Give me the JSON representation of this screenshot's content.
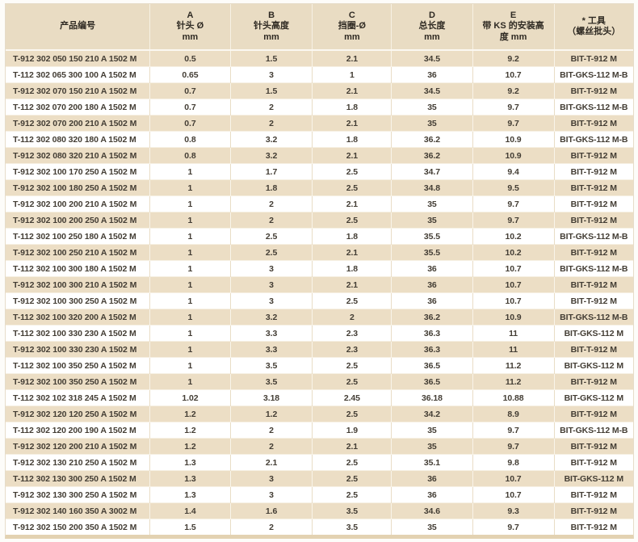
{
  "colors": {
    "header_bg": "#e9dcc3",
    "stripe_bg": "#ecdec5",
    "row_bg": "#ffffff",
    "bottom_bar": "#e3d2b2",
    "text": "#433d34"
  },
  "table": {
    "columns": [
      {
        "key": "product",
        "lines": [
          "产品编号"
        ]
      },
      {
        "key": "a",
        "lines": [
          "A",
          "针头 Ø",
          "mm"
        ]
      },
      {
        "key": "b",
        "lines": [
          "B",
          "针头高度",
          "mm"
        ]
      },
      {
        "key": "c",
        "lines": [
          "C",
          "挡圈-Ø",
          "mm"
        ]
      },
      {
        "key": "d",
        "lines": [
          "D",
          "总长度",
          "mm"
        ]
      },
      {
        "key": "e",
        "lines": [
          "E",
          "带 KS 的安装高",
          "度 mm"
        ]
      },
      {
        "key": "tool",
        "lines": [
          "* 工具",
          "（螺丝批头）"
        ]
      }
    ],
    "rows": [
      [
        "T-912 302 050 150 210 A 1502 M",
        "0.5",
        "1.5",
        "2.1",
        "34.5",
        "9.2",
        "BIT-T-912 M"
      ],
      [
        "T-112 302 065 300 100 A 1502 M",
        "0.65",
        "3",
        "1",
        "36",
        "10.7",
        "BIT-GKS-112 M-B"
      ],
      [
        "T-912 302 070 150 210 A 1502 M",
        "0.7",
        "1.5",
        "2.1",
        "34.5",
        "9.2",
        "BIT-T-912 M"
      ],
      [
        "T-112 302 070 200 180 A 1502 M",
        "0.7",
        "2",
        "1.8",
        "35",
        "9.7",
        "BIT-GKS-112 M-B"
      ],
      [
        "T-912 302 070 200 210 A 1502 M",
        "0.7",
        "2",
        "2.1",
        "35",
        "9.7",
        "BIT-T-912 M"
      ],
      [
        "T-112 302 080 320 180 A 1502 M",
        "0.8",
        "3.2",
        "1.8",
        "36.2",
        "10.9",
        "BIT-GKS-112 M-B"
      ],
      [
        "T-912 302 080 320 210 A 1502 M",
        "0.8",
        "3.2",
        "2.1",
        "36.2",
        "10.9",
        "BIT-T-912 M"
      ],
      [
        "T-912 302 100 170 250 A 1502 M",
        "1",
        "1.7",
        "2.5",
        "34.7",
        "9.4",
        "BIT-T-912 M"
      ],
      [
        "T-912 302 100 180 250 A 1502 M",
        "1",
        "1.8",
        "2.5",
        "34.8",
        "9.5",
        "BIT-T-912 M"
      ],
      [
        "T-912 302 100 200 210 A 1502 M",
        "1",
        "2",
        "2.1",
        "35",
        "9.7",
        "BIT-T-912 M"
      ],
      [
        "T-912 302 100 200 250 A 1502 M",
        "1",
        "2",
        "2.5",
        "35",
        "9.7",
        "BIT-T-912 M"
      ],
      [
        "T-112 302 100 250 180 A 1502 M",
        "1",
        "2.5",
        "1.8",
        "35.5",
        "10.2",
        "BIT-GKS-112 M-B"
      ],
      [
        "T-912 302 100 250 210 A 1502 M",
        "1",
        "2.5",
        "2.1",
        "35.5",
        "10.2",
        "BIT-T-912 M"
      ],
      [
        "T-112 302 100 300 180 A 1502 M",
        "1",
        "3",
        "1.8",
        "36",
        "10.7",
        "BIT-GKS-112 M-B"
      ],
      [
        "T-912 302 100 300 210 A 1502 M",
        "1",
        "3",
        "2.1",
        "36",
        "10.7",
        "BIT-T-912 M"
      ],
      [
        "T-912 302 100 300 250 A 1502 M",
        "1",
        "3",
        "2.5",
        "36",
        "10.7",
        "BIT-T-912 M"
      ],
      [
        "T-112 302 100 320 200 A 1502 M",
        "1",
        "3.2",
        "2",
        "36.2",
        "10.9",
        "BIT-GKS-112 M-B"
      ],
      [
        "T-112 302 100 330 230 A 1502 M",
        "1",
        "3.3",
        "2.3",
        "36.3",
        "11",
        "BIT-GKS-112 M"
      ],
      [
        "T-912 302 100 330 230 A 1502 M",
        "1",
        "3.3",
        "2.3",
        "36.3",
        "11",
        "BIT-T-912 M"
      ],
      [
        "T-112 302 100 350 250 A 1502 M",
        "1",
        "3.5",
        "2.5",
        "36.5",
        "11.2",
        "BIT-GKS-112 M"
      ],
      [
        "T-912 302 100 350 250 A 1502 M",
        "1",
        "3.5",
        "2.5",
        "36.5",
        "11.2",
        "BIT-T-912 M"
      ],
      [
        "T-112 302 102 318 245 A 1502 M",
        "1.02",
        "3.18",
        "2.45",
        "36.18",
        "10.88",
        "BIT-GKS-112 M"
      ],
      [
        "T-912 302 120 120 250 A 1502 M",
        "1.2",
        "1.2",
        "2.5",
        "34.2",
        "8.9",
        "BIT-T-912 M"
      ],
      [
        "T-112 302 120 200 190 A 1502 M",
        "1.2",
        "2",
        "1.9",
        "35",
        "9.7",
        "BIT-GKS-112 M-B"
      ],
      [
        "T-912 302 120 200 210 A 1502 M",
        "1.2",
        "2",
        "2.1",
        "35",
        "9.7",
        "BIT-T-912 M"
      ],
      [
        "T-912 302 130 210 250 A 1502 M",
        "1.3",
        "2.1",
        "2.5",
        "35.1",
        "9.8",
        "BIT-T-912 M"
      ],
      [
        "T-112 302 130 300 250 A 1502 M",
        "1.3",
        "3",
        "2.5",
        "36",
        "10.7",
        "BIT-GKS-112 M"
      ],
      [
        "T-912 302 130 300 250 A 1502 M",
        "1.3",
        "3",
        "2.5",
        "36",
        "10.7",
        "BIT-T-912 M"
      ],
      [
        "T-912 302 140 160 350 A 3002 M",
        "1.4",
        "1.6",
        "3.5",
        "34.6",
        "9.3",
        "BIT-T-912 M"
      ],
      [
        "T-912 302 150 200 350 A 1502 M",
        "1.5",
        "2",
        "3.5",
        "35",
        "9.7",
        "BIT-T-912 M"
      ]
    ]
  }
}
